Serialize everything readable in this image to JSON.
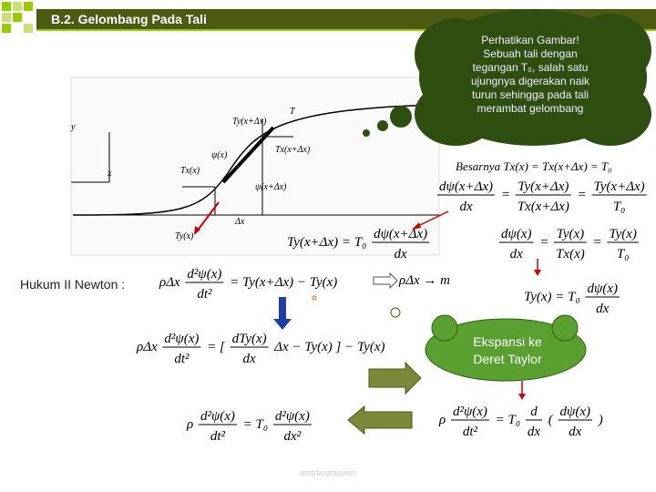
{
  "header": {
    "title": "B.2. Gelombang Pada Tali"
  },
  "callout": {
    "lines": [
      "Perhatikan Gambar!",
      "Sebuah tali dengan",
      "tegangan T₀, salah satu",
      "ujungnya digerakan naik",
      "turun sehingga pada tali",
      "merambat gelombang"
    ]
  },
  "figure": {
    "labels": [
      "y",
      "x",
      "T",
      "Ty(x+Δx)",
      "ψ(x)",
      "Tx(x+Δx)",
      "Tx(x)",
      "ψ(x+Δx)",
      "Δx",
      "Ty(x)"
    ]
  },
  "law_label": "Hukum II Newton :",
  "equations": [
    {
      "tokens": [
        "Besarnya Tx(x) = Tx(x+Δx) = T₀"
      ]
    },
    {
      "tokens": [
        {
          "num": "dψ(x+Δx)",
          "den": "dx"
        },
        " = ",
        {
          "num": "Ty(x+Δx)",
          "den": "Tx(x+Δx)"
        },
        " = ",
        {
          "num": "Ty(x+Δx)",
          "den": "T₀"
        }
      ]
    },
    {
      "tokens": [
        "Ty(x+Δx) = T₀ ",
        {
          "num": "dψ(x+Δx)",
          "den": "dx"
        }
      ]
    },
    {
      "tokens": [
        {
          "num": "dψ(x)",
          "den": "dx"
        },
        " = ",
        {
          "num": "Ty(x)",
          "den": "Tx(x)"
        },
        " = ",
        {
          "num": "Ty(x)",
          "den": "T₀"
        }
      ]
    },
    {
      "tokens": [
        "Ty(x) = T₀ ",
        {
          "num": "dψ(x)",
          "den": "dx"
        }
      ]
    },
    {
      "tokens": [
        "ρΔx ",
        {
          "num": "d²ψ(x)",
          "den": "dt²"
        },
        " = Ty(x+Δx) − Ty(x)"
      ]
    },
    {
      "tokens": [
        "ρΔx → m"
      ]
    },
    {
      "tokens": [
        "ρΔx ",
        {
          "num": "d²ψ(x)",
          "den": "dt²"
        },
        " = [ ",
        {
          "num": "dTy(x)",
          "den": "dx"
        },
        " Δx − Ty(x) ] − Ty(x)"
      ]
    },
    {
      "tokens": [
        "ρ ",
        {
          "num": "d²ψ(x)",
          "den": "dt²"
        },
        " = T₀ ",
        {
          "num": "d",
          "den": "dx"
        },
        " ( ",
        {
          "num": "dψ(x)",
          "den": "dx"
        },
        " )"
      ]
    },
    {
      "tokens": [
        "ρ ",
        {
          "num": "d²ψ(x)",
          "den": "dt²"
        },
        " = T₀ ",
        {
          "num": "d²ψ(x)",
          "den": "dx²"
        }
      ]
    }
  ],
  "taylor_bubble": {
    "lines": [
      "Ekspansi ke",
      "Deret Taylor"
    ]
  },
  "footer": "andriwsetiawan"
}
